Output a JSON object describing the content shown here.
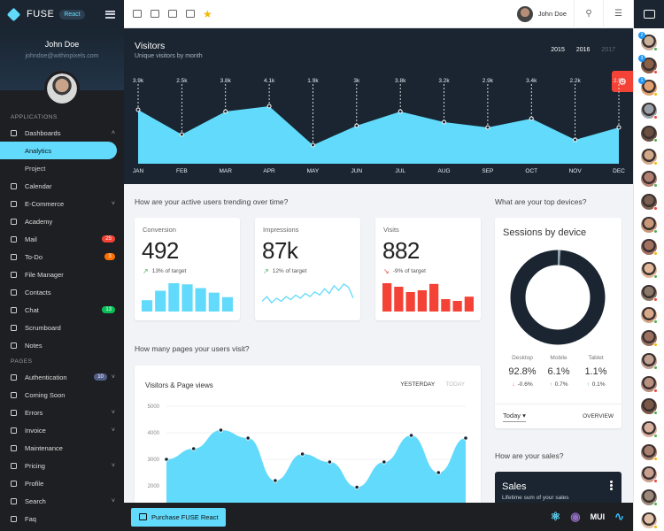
{
  "sidebar": {
    "brand": "FUSE",
    "tag": "React",
    "user_name": "John Doe",
    "user_email": "johndoe@withinpixels.com",
    "sections": [
      {
        "title": "APPLICATIONS",
        "items": [
          {
            "label": "Dashboards",
            "chev": "˄"
          },
          {
            "label": "Analytics",
            "sub": true,
            "active": true
          },
          {
            "label": "Project",
            "sub": true
          },
          {
            "label": "Calendar"
          },
          {
            "label": "E-Commerce",
            "chev": "˅"
          },
          {
            "label": "Academy"
          },
          {
            "label": "Mail",
            "badge": "25",
            "badge_color": "#f44336"
          },
          {
            "label": "To-Do",
            "badge": "3",
            "badge_color": "#ff6f00"
          },
          {
            "label": "File Manager"
          },
          {
            "label": "Contacts"
          },
          {
            "label": "Chat",
            "badge": "13",
            "badge_color": "#09c057"
          },
          {
            "label": "Scrumboard"
          },
          {
            "label": "Notes"
          }
        ]
      },
      {
        "title": "PAGES",
        "items": [
          {
            "label": "Authentication",
            "badge": "10",
            "badge_color": "#525e8a",
            "chev": "˅"
          },
          {
            "label": "Coming Soon"
          },
          {
            "label": "Errors",
            "chev": "˅"
          },
          {
            "label": "Invoice",
            "chev": "˅"
          },
          {
            "label": "Maintenance"
          },
          {
            "label": "Pricing",
            "chev": "˅"
          },
          {
            "label": "Profile"
          },
          {
            "label": "Search",
            "chev": "˅"
          },
          {
            "label": "Faq"
          }
        ]
      }
    ]
  },
  "topbar": {
    "user_name": "John Doe",
    "search_icon": "⚲",
    "list_icon": "☰"
  },
  "visitors": {
    "title": "Visitors",
    "subtitle": "Unique visitors by month",
    "years": [
      "2015",
      "2016",
      "2017"
    ],
    "cog_icon": "⚙"
  },
  "sections": {
    "active_users": "How are your active users trending over time?",
    "top_devices": "What are your top devices?",
    "pages_visit": "How many pages your users visit?",
    "sales_q": "How are your sales?"
  },
  "kpis": [
    {
      "label": "Conversion",
      "value": "492",
      "sub": "13% of target",
      "trend": "up",
      "trend_icon": "↗",
      "trend_color": "#4caf50",
      "chart": "bar",
      "color": "#61dafb",
      "values": [
        30,
        55,
        75,
        72,
        62,
        50,
        38
      ]
    },
    {
      "label": "Impressions",
      "value": "87k",
      "sub": "12% of target",
      "trend": "up",
      "trend_icon": "↗",
      "trend_color": "#4caf50",
      "chart": "line",
      "color": "#61dafb",
      "values": [
        30,
        45,
        25,
        40,
        30,
        45,
        35,
        50,
        40,
        55,
        45,
        60,
        50,
        70,
        55,
        80,
        65,
        85,
        75,
        40
      ]
    },
    {
      "label": "Visits",
      "value": "882",
      "sub": "-9% of target",
      "trend": "down",
      "trend_icon": "↘",
      "trend_color": "#f44336",
      "chart": "bar",
      "color": "#f44336",
      "values": [
        80,
        70,
        55,
        60,
        78,
        35,
        30,
        42
      ]
    }
  ],
  "sessions": {
    "title": "Sessions by device",
    "ring_color": "#1a2531",
    "devices": [
      {
        "name": "Desktop",
        "value": "92.8%",
        "change": "-0.6%",
        "dir": "down",
        "dir_icon": "↓",
        "dir_color": "#f44336"
      },
      {
        "name": "Mobile",
        "value": "6.1%",
        "change": "0.7%",
        "dir": "up",
        "dir_icon": "↑",
        "dir_color": "#4caf50"
      },
      {
        "name": "Tablet",
        "value": "1.1%",
        "change": "0.1%",
        "dir": "up",
        "dir_icon": "↑",
        "dir_color": "#4caf50"
      }
    ],
    "period": "Today",
    "period_icon": "▾",
    "overview": "OVERVIEW"
  },
  "pageviews": {
    "title": "Visitors & Page views",
    "tabs": [
      "YESTERDAY",
      "TODAY"
    ]
  },
  "sales": {
    "title": "Sales",
    "subtitle": "Lifetime sum of your sales"
  },
  "footer": {
    "purchase": "Purchase FUSE React",
    "logos": [
      "⚛",
      "◉",
      "MUI",
      "∿"
    ]
  },
  "chart_data": [
    {
      "type": "area",
      "categories": [
        "JAN",
        "FEB",
        "MAR",
        "APR",
        "MAY",
        "JUN",
        "JUL",
        "AUG",
        "SEP",
        "OCT",
        "NOV",
        "DEC"
      ],
      "values": [
        3.9,
        2.5,
        3.8,
        4.1,
        1.9,
        3.0,
        3.8,
        3.2,
        2.9,
        3.4,
        2.2,
        2.9
      ],
      "labels": [
        "3.9k",
        "2.5k",
        "3.8k",
        "4.1k",
        "1.9k",
        "3k",
        "3.8k",
        "3.2k",
        "2.9k",
        "3.4k",
        "2.2k",
        "2.9k"
      ],
      "color": "#61dafb"
    },
    {
      "type": "area",
      "title": "Visitors & Page views",
      "yticks": [
        "5000",
        "4000",
        "3000",
        "2000"
      ],
      "ylim": [
        1000,
        5000
      ],
      "values": [
        3000,
        3400,
        4100,
        3800,
        2200,
        3200,
        2900,
        1950,
        2900,
        3900,
        2500,
        3800
      ],
      "color": "#61dafb"
    }
  ],
  "contacts": [
    {
      "bg": "#c9b09a",
      "status": "#4caf50",
      "badge": "2"
    },
    {
      "bg": "#8a6048",
      "status": "#f44336",
      "badge": "3"
    },
    {
      "bg": "#e0a070",
      "status": "#f5b900",
      "badge": "1"
    },
    {
      "bg": "#9aa0a8",
      "status": "#f44336"
    },
    {
      "bg": "#6a5040",
      "status": "#4caf50"
    },
    {
      "bg": "#d0a888",
      "status": "#f5b900"
    },
    {
      "bg": "#b08070",
      "status": "#4caf50"
    },
    {
      "bg": "#7a6050",
      "status": "#f44336"
    },
    {
      "bg": "#c89878",
      "status": "#4caf50"
    },
    {
      "bg": "#a07060",
      "status": "#f5b900"
    },
    {
      "bg": "#e0b898",
      "status": "#4caf50"
    },
    {
      "bg": "#8a7868",
      "status": "#f44336"
    },
    {
      "bg": "#d8a888",
      "status": "#4caf50"
    },
    {
      "bg": "#9a7060",
      "status": "#f5b900"
    },
    {
      "bg": "#c0a090",
      "status": "#4caf50"
    },
    {
      "bg": "#b89080",
      "status": "#f44336"
    },
    {
      "bg": "#7a5848",
      "status": "#4caf50"
    },
    {
      "bg": "#d8b0a0",
      "status": "#4caf50"
    },
    {
      "bg": "#a88070",
      "status": "#f5b900"
    },
    {
      "bg": "#c8a090",
      "status": "#f44336"
    },
    {
      "bg": "#9a8878",
      "status": "#4caf50"
    },
    {
      "bg": "#e0c0a8",
      "status": "#f5b900"
    },
    {
      "bg": "#8a6858",
      "status": "#4caf50"
    }
  ]
}
